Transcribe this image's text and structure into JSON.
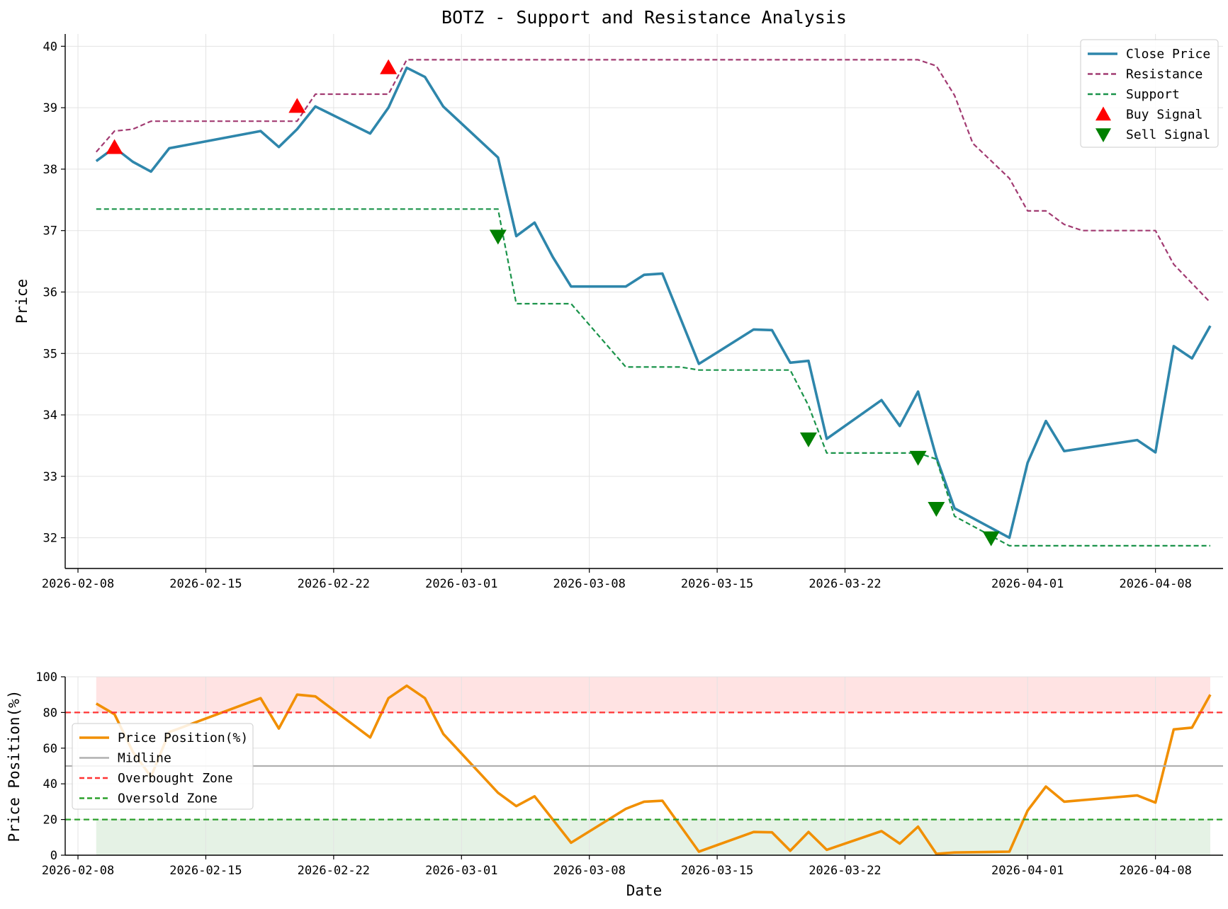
{
  "chart_data": [
    {
      "type": "line",
      "title": "BOTZ - Support and Resistance Analysis",
      "xlabel": "",
      "ylabel": "Price",
      "ylim": [
        31.5,
        40.2
      ],
      "xlim": [
        "2026-02-08",
        "2026-04-11"
      ],
      "grid": true,
      "legend_position": "top-right",
      "x_ticks": [
        "2026-02-08",
        "2026-02-15",
        "2026-02-22",
        "2026-03-01",
        "2026-03-08",
        "2026-03-15",
        "2026-03-22",
        "2026-04-01",
        "2026-04-08"
      ],
      "y_ticks": [
        32,
        33,
        34,
        35,
        36,
        37,
        38,
        39,
        40
      ],
      "series": [
        {
          "name": "Close Price",
          "color": "#2e86ab",
          "style": "solid",
          "points": [
            [
              "2026-02-09",
              38.13
            ],
            [
              "2026-02-10",
              38.35
            ],
            [
              "2026-02-11",
              38.12
            ],
            [
              "2026-02-12",
              37.96
            ],
            [
              "2026-02-13",
              38.34
            ],
            [
              "2026-02-18",
              38.62
            ],
            [
              "2026-02-19",
              38.36
            ],
            [
              "2026-02-20",
              38.65
            ],
            [
              "2026-02-21",
              39.02
            ],
            [
              "2026-02-24",
              38.58
            ],
            [
              "2026-02-25",
              39.0
            ],
            [
              "2026-02-26",
              39.65
            ],
            [
              "2026-02-27",
              39.5
            ],
            [
              "2026-02-28",
              39.02
            ],
            [
              "2026-03-03",
              38.19
            ],
            [
              "2026-03-04",
              36.91
            ],
            [
              "2026-03-05",
              37.13
            ],
            [
              "2026-03-06",
              36.57
            ],
            [
              "2026-03-07",
              36.09
            ],
            [
              "2026-03-10",
              36.09
            ],
            [
              "2026-03-11",
              36.28
            ],
            [
              "2026-03-12",
              36.3
            ],
            [
              "2026-03-14",
              34.83
            ],
            [
              "2026-03-17",
              35.39
            ],
            [
              "2026-03-18",
              35.38
            ],
            [
              "2026-03-19",
              34.85
            ],
            [
              "2026-03-20",
              34.88
            ],
            [
              "2026-03-21",
              33.61
            ],
            [
              "2026-03-24",
              34.24
            ],
            [
              "2026-03-25",
              33.82
            ],
            [
              "2026-03-26",
              34.38
            ],
            [
              "2026-03-27",
              33.31
            ],
            [
              "2026-03-28",
              32.48
            ],
            [
              "2026-03-31",
              32.0
            ],
            [
              "2026-04-01",
              33.22
            ],
            [
              "2026-04-02",
              33.9
            ],
            [
              "2026-04-03",
              33.41
            ],
            [
              "2026-04-07",
              33.59
            ],
            [
              "2026-04-08",
              33.39
            ],
            [
              "2026-04-09",
              35.12
            ],
            [
              "2026-04-10",
              34.92
            ],
            [
              "2026-04-11",
              35.45
            ]
          ]
        },
        {
          "name": "Resistance",
          "color": "#a23b72",
          "style": "dashed",
          "points": [
            [
              "2026-02-09",
              38.28
            ],
            [
              "2026-02-10",
              38.62
            ],
            [
              "2026-02-11",
              38.65
            ],
            [
              "2026-02-12",
              38.78
            ],
            [
              "2026-02-20",
              38.78
            ],
            [
              "2026-02-21",
              39.22
            ],
            [
              "2026-02-25",
              39.22
            ],
            [
              "2026-02-26",
              39.78
            ],
            [
              "2026-03-26",
              39.78
            ],
            [
              "2026-03-27",
              39.68
            ],
            [
              "2026-03-28",
              39.2
            ],
            [
              "2026-03-29",
              38.42
            ],
            [
              "2026-03-31",
              37.85
            ],
            [
              "2026-04-01",
              37.32
            ],
            [
              "2026-04-02",
              37.32
            ],
            [
              "2026-04-03",
              37.1
            ],
            [
              "2026-04-04",
              37.0
            ],
            [
              "2026-04-08",
              37.0
            ],
            [
              "2026-04-09",
              36.45
            ],
            [
              "2026-04-11",
              35.83
            ]
          ]
        },
        {
          "name": "Support",
          "color": "#1a934a",
          "style": "dashed",
          "points": [
            [
              "2026-02-09",
              37.35
            ],
            [
              "2026-03-03",
              37.35
            ],
            [
              "2026-03-04",
              35.81
            ],
            [
              "2026-03-07",
              35.81
            ],
            [
              "2026-03-10",
              34.78
            ],
            [
              "2026-03-13",
              34.78
            ],
            [
              "2026-03-14",
              34.73
            ],
            [
              "2026-03-19",
              34.73
            ],
            [
              "2026-03-20",
              34.15
            ],
            [
              "2026-03-21",
              33.38
            ],
            [
              "2026-03-26",
              33.38
            ],
            [
              "2026-03-27",
              33.28
            ],
            [
              "2026-03-28",
              32.35
            ],
            [
              "2026-03-31",
              31.87
            ],
            [
              "2026-04-11",
              31.87
            ]
          ]
        },
        {
          "name": "Buy Signal",
          "color": "#ff0000",
          "marker": "triangle-up",
          "points": [
            [
              "2026-02-10",
              38.35
            ],
            [
              "2026-02-20",
              39.02
            ],
            [
              "2026-02-25",
              39.65
            ]
          ]
        },
        {
          "name": "Sell Signal",
          "color": "#008000",
          "marker": "triangle-down",
          "points": [
            [
              "2026-03-03",
              36.91
            ],
            [
              "2026-03-20",
              33.61
            ],
            [
              "2026-03-26",
              33.31
            ],
            [
              "2026-03-27",
              32.48
            ],
            [
              "2026-03-30",
              32.0
            ]
          ]
        }
      ]
    },
    {
      "type": "line",
      "title": "",
      "xlabel": "Date",
      "ylabel": "Price Position(%)",
      "ylim": [
        0,
        100
      ],
      "xlim": [
        "2026-02-08",
        "2026-04-11"
      ],
      "grid": true,
      "legend_position": "center-left",
      "x_ticks": [
        "2026-02-08",
        "2026-02-15",
        "2026-02-22",
        "2026-03-01",
        "2026-03-08",
        "2026-03-15",
        "2026-03-22",
        "2026-04-01",
        "2026-04-08"
      ],
      "y_ticks": [
        0,
        20,
        40,
        60,
        80,
        100
      ],
      "zones": [
        {
          "from": 80,
          "to": 100,
          "color": "#ffcccc"
        },
        {
          "from": 0,
          "to": 20,
          "color": "#cfe8cf"
        }
      ],
      "series": [
        {
          "name": "Price Position(%)",
          "color": "#f18f01",
          "style": "solid",
          "points": [
            [
              "2026-02-09",
              85
            ],
            [
              "2026-02-10",
              79
            ],
            [
              "2026-02-11",
              58
            ],
            [
              "2026-02-12",
              44
            ],
            [
              "2026-02-13",
              69
            ],
            [
              "2026-02-18",
              88
            ],
            [
              "2026-02-19",
              71
            ],
            [
              "2026-02-20",
              90
            ],
            [
              "2026-02-21",
              89
            ],
            [
              "2026-02-24",
              66
            ],
            [
              "2026-02-25",
              88
            ],
            [
              "2026-02-26",
              95
            ],
            [
              "2026-02-27",
              88
            ],
            [
              "2026-02-28",
              68
            ],
            [
              "2026-03-03",
              35
            ],
            [
              "2026-03-04",
              27.5
            ],
            [
              "2026-03-05",
              33
            ],
            [
              "2026-03-07",
              7
            ],
            [
              "2026-03-10",
              26
            ],
            [
              "2026-03-11",
              30
            ],
            [
              "2026-03-12",
              30.5
            ],
            [
              "2026-03-14",
              2
            ],
            [
              "2026-03-17",
              13
            ],
            [
              "2026-03-18",
              12.8
            ],
            [
              "2026-03-19",
              2.5
            ],
            [
              "2026-03-20",
              13
            ],
            [
              "2026-03-21",
              3
            ],
            [
              "2026-03-24",
              13.5
            ],
            [
              "2026-03-25",
              6.5
            ],
            [
              "2026-03-26",
              16
            ],
            [
              "2026-03-27",
              0.8
            ],
            [
              "2026-03-28",
              1.5
            ],
            [
              "2026-03-31",
              2
            ],
            [
              "2026-04-01",
              25
            ],
            [
              "2026-04-02",
              38.5
            ],
            [
              "2026-04-03",
              30
            ],
            [
              "2026-04-07",
              33.5
            ],
            [
              "2026-04-08",
              29.5
            ],
            [
              "2026-04-09",
              70.5
            ],
            [
              "2026-04-10",
              71.5
            ],
            [
              "2026-04-11",
              90
            ]
          ]
        },
        {
          "name": "Midline",
          "color": "#b0b0b0",
          "style": "solid",
          "value": 50
        },
        {
          "name": "Overbought Zone",
          "color": "#ff3333",
          "style": "dashed",
          "value": 80
        },
        {
          "name": "Oversold Zone",
          "color": "#2ca02c",
          "style": "dashed",
          "value": 20
        }
      ]
    }
  ]
}
